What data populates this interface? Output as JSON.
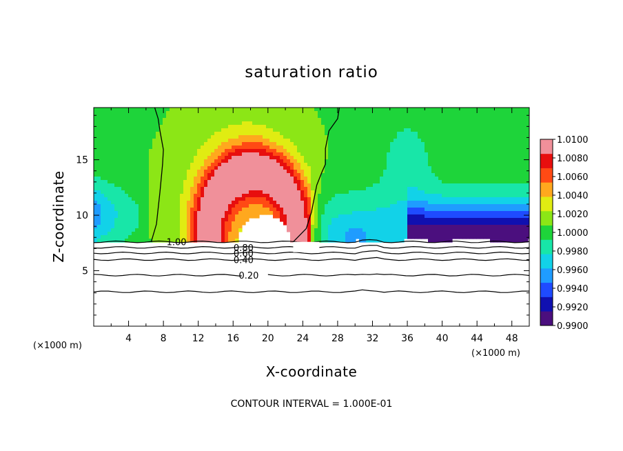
{
  "chart_data": {
    "type": "heatmap",
    "title": "saturation ratio",
    "xlabel": "X-coordinate",
    "ylabel": "Z-coordinate",
    "x_unit": "(×1000 m)",
    "y_unit": "(×1000 m)",
    "xlim": [
      0,
      50
    ],
    "ylim": [
      0,
      19.7
    ],
    "x_ticks": [
      4,
      8,
      12,
      16,
      20,
      24,
      28,
      32,
      36,
      40,
      44,
      48
    ],
    "y_ticks": [
      5,
      10,
      15
    ],
    "colorbar": {
      "min": 0.99,
      "max": 1.01,
      "labels": [
        "1.0100",
        "1.0080",
        "1.0060",
        "1.0040",
        "1.0020",
        "1.0000",
        "0.9980",
        "0.9960",
        "0.9940",
        "0.9920",
        "0.9900"
      ],
      "colors": [
        "#4b0f7e",
        "#1010b0",
        "#1f4bff",
        "#1f9cff",
        "#12d2e8",
        "#18e6a8",
        "#1ed43a",
        "#8ce616",
        "#e0ec12",
        "#ffa81e",
        "#ff4a14",
        "#e80e0e",
        "#f0909a"
      ]
    },
    "contour_interval": "CONTOUR INTERVAL = 1.000E-01",
    "contours": [
      {
        "label": "1.00",
        "z": 7.6
      },
      {
        "label": "0.80",
        "z": 7.1
      },
      {
        "label": "0.60",
        "z": 6.6
      },
      {
        "label": "0.40",
        "z": 6.0
      },
      {
        "label": "0.20",
        "z": 4.6
      },
      {
        "label": "",
        "z": 3.1
      }
    ],
    "unit_contours": [
      [
        [
          6.6,
          7.6
        ],
        [
          7.2,
          9.2
        ],
        [
          7.6,
          12.1
        ],
        [
          7.9,
          14.6
        ],
        [
          8.0,
          15.9
        ],
        [
          7.6,
          17.6
        ],
        [
          7.4,
          18.7
        ],
        [
          7.0,
          19.7
        ]
      ],
      [
        [
          22.9,
          7.6
        ],
        [
          24.4,
          8.8
        ],
        [
          25.0,
          10.3
        ],
        [
          25.6,
          12.7
        ],
        [
          26.2,
          13.9
        ],
        [
          26.6,
          14.6
        ],
        [
          26.6,
          16.0
        ],
        [
          27.0,
          17.6
        ],
        [
          28.0,
          18.7
        ],
        [
          28.2,
          19.7
        ]
      ]
    ]
  }
}
